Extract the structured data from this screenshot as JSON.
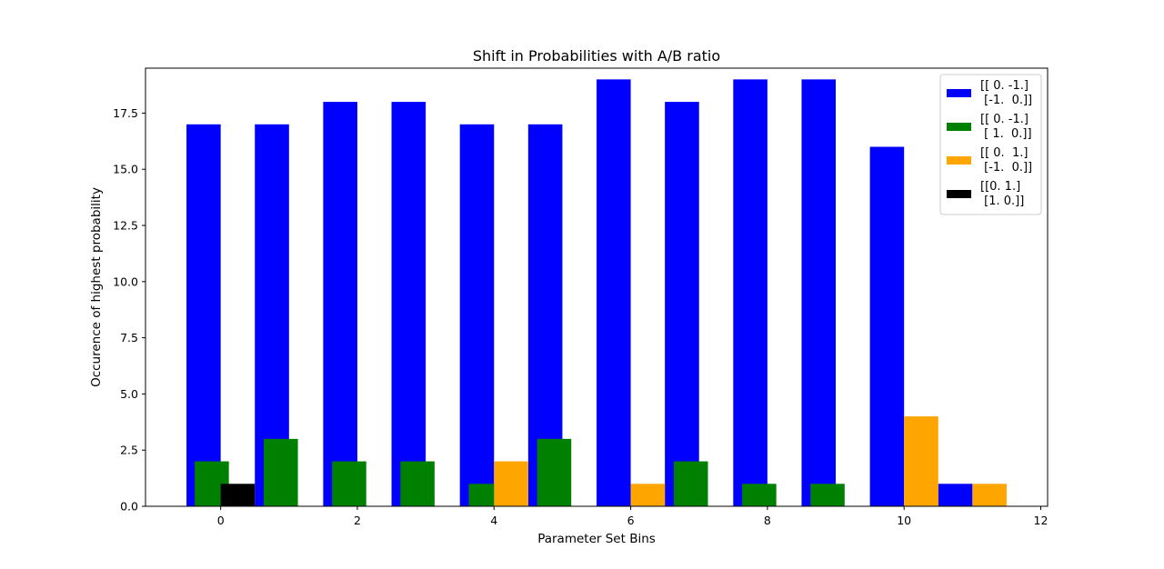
{
  "chart_data": {
    "type": "bar",
    "title": "Shift in Probabilities with A/B ratio",
    "xlabel": "Parameter Set Bins",
    "ylabel": "Occurence of highest probability",
    "xlim": [
      -1.1,
      12.1
    ],
    "ylim": [
      0,
      19.5
    ],
    "xticks": [
      0,
      2,
      4,
      6,
      8,
      10,
      12
    ],
    "yticks": [
      0.0,
      2.5,
      5.0,
      7.5,
      10.0,
      12.5,
      15.0,
      17.5
    ],
    "ytick_labels": [
      "0.0",
      "2.5",
      "5.0",
      "7.5",
      "10.0",
      "12.5",
      "15.0",
      "17.5"
    ],
    "bar_width": 0.5,
    "legend_position": "top-right",
    "series": [
      {
        "name": "[[ 0. -1.]\n [-1.  0.]]",
        "legend_lines": [
          "[[ 0. -1.]",
          " [-1.  0.]]"
        ],
        "color": "#0000ff",
        "points": [
          {
            "x": -0.25,
            "y": 17
          },
          {
            "x": 0.75,
            "y": 17
          },
          {
            "x": 1.75,
            "y": 18
          },
          {
            "x": 2.75,
            "y": 18
          },
          {
            "x": 3.75,
            "y": 17
          },
          {
            "x": 4.75,
            "y": 17
          },
          {
            "x": 5.75,
            "y": 19
          },
          {
            "x": 6.75,
            "y": 18
          },
          {
            "x": 7.75,
            "y": 19
          },
          {
            "x": 8.75,
            "y": 19
          },
          {
            "x": 9.75,
            "y": 16
          },
          {
            "x": 10.75,
            "y": 1
          }
        ]
      },
      {
        "name": "[[ 0. -1.]\n [ 1.  0.]]",
        "legend_lines": [
          "[[ 0. -1.]",
          " [ 1.  0.]]"
        ],
        "color": "#008000",
        "points": [
          {
            "x": -0.13,
            "y": 2
          },
          {
            "x": 0.88,
            "y": 3
          },
          {
            "x": 1.88,
            "y": 2
          },
          {
            "x": 2.88,
            "y": 2
          },
          {
            "x": 3.88,
            "y": 1
          },
          {
            "x": 4.88,
            "y": 3
          },
          {
            "x": 6.88,
            "y": 2
          },
          {
            "x": 7.88,
            "y": 1
          },
          {
            "x": 8.88,
            "y": 1
          }
        ]
      },
      {
        "name": "[[ 0.  1.]\n [-1.  0.]]",
        "legend_lines": [
          "[[ 0.  1.]",
          " [-1.  0.]]"
        ],
        "color": "#ffa500",
        "points": [
          {
            "x": 4.25,
            "y": 2
          },
          {
            "x": 6.25,
            "y": 1
          },
          {
            "x": 10.25,
            "y": 4
          },
          {
            "x": 11.25,
            "y": 1
          }
        ]
      },
      {
        "name": "[[0. 1.]\n [1. 0.]]",
        "legend_lines": [
          "[[0. 1.]",
          " [1. 0.]]"
        ],
        "color": "#000000",
        "points": [
          {
            "x": 0.25,
            "y": 1
          }
        ]
      }
    ]
  }
}
